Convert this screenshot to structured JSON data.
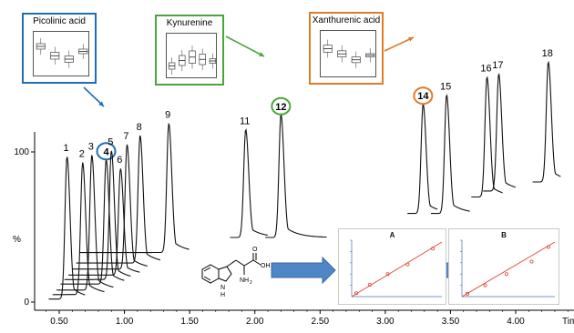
{
  "chart_data": {
    "type": "line",
    "xlabel": "Time",
    "ylabel": "%",
    "x_ticks": [
      0.5,
      1.0,
      1.5,
      2.0,
      2.5,
      3.0,
      3.5,
      4.0
    ],
    "x_tick_labels": [
      "0.50",
      "1.00",
      "1.50",
      "2.00",
      "2.50",
      "3.00",
      "3.50",
      "4.00"
    ],
    "y_ticks": [
      0,
      100
    ],
    "y_tick_labels": [
      "0",
      "100"
    ],
    "xlim": [
      0.35,
      4.45
    ],
    "ylim": [
      0,
      100
    ],
    "series": [
      {
        "label": "1",
        "rt": 0.56,
        "peak": 97,
        "baseline": 2,
        "tail_end": 0.7
      },
      {
        "label": "2",
        "rt": 0.68,
        "peak": 93,
        "baseline": 5,
        "tail_end": 0.85
      },
      {
        "label": "3",
        "rt": 0.75,
        "peak": 98,
        "baseline": 8,
        "tail_end": 0.92
      },
      {
        "label": "4",
        "rt": 0.86,
        "peak": 95,
        "baseline": 12,
        "tail_end": 1.0
      },
      {
        "label": "5",
        "rt": 0.9,
        "peak": 101,
        "baseline": 15,
        "tail_end": 1.05
      },
      {
        "label": "6",
        "rt": 0.97,
        "peak": 89,
        "baseline": 18,
        "tail_end": 1.12
      },
      {
        "label": "7",
        "rt": 1.02,
        "peak": 105,
        "baseline": 22,
        "tail_end": 1.18
      },
      {
        "label": "8",
        "rt": 1.12,
        "peak": 111,
        "baseline": 26,
        "tail_end": 1.28
      },
      {
        "label": "9",
        "rt": 1.34,
        "peak": 119,
        "baseline": 33,
        "tail_end": 1.5
      },
      {
        "label": "11",
        "rt": 1.93,
        "peak": 115,
        "baseline": 43,
        "tail_end": 2.1
      },
      {
        "label": "12",
        "rt": 2.2,
        "peak": 125,
        "baseline": 43,
        "tail_end": 2.55
      },
      {
        "label": "14",
        "rt": 3.29,
        "peak": 132,
        "baseline": 59,
        "tail_end": 3.4
      },
      {
        "label": "15",
        "rt": 3.47,
        "peak": 138,
        "baseline": 59,
        "tail_end": 3.65
      },
      {
        "label": "16",
        "rt": 3.78,
        "peak": 150,
        "baseline": 70,
        "tail_end": 3.9
      },
      {
        "label": "17",
        "rt": 3.87,
        "peak": 152,
        "baseline": 74,
        "tail_end": 4.0
      },
      {
        "label": "18",
        "rt": 4.25,
        "peak": 160,
        "baseline": 80,
        "tail_end": 4.35
      }
    ],
    "insets": [
      {
        "title": "Picolinic acid",
        "points_to": "4",
        "color": "#1f6fb6",
        "boxes": [
          [
            0.62,
            0.74
          ],
          [
            0.4,
            0.55
          ],
          [
            0.33,
            0.47
          ],
          [
            0.52,
            0.62
          ]
        ]
      },
      {
        "title": "Kynurenine",
        "points_to": "12",
        "color": "#4aa63a",
        "boxes": [
          [
            0.22,
            0.36
          ],
          [
            0.3,
            0.52
          ],
          [
            0.35,
            0.62
          ],
          [
            0.32,
            0.55
          ],
          [
            0.35,
            0.45
          ]
        ]
      },
      {
        "title": "Xanthurenic acid",
        "points_to": "14",
        "color": "#e07b2b",
        "boxes": [
          [
            0.55,
            0.7
          ],
          [
            0.45,
            0.58
          ],
          [
            0.33,
            0.45
          ],
          [
            0.45,
            0.52
          ]
        ]
      }
    ],
    "calibration_panels": [
      {
        "title": "A",
        "points": [
          [
            0.05,
            0.06
          ],
          [
            0.2,
            0.21
          ],
          [
            0.4,
            0.4
          ],
          [
            0.62,
            0.57
          ],
          [
            0.9,
            0.85
          ]
        ]
      },
      {
        "title": "B",
        "points": [
          [
            0.06,
            0.05
          ],
          [
            0.25,
            0.2
          ],
          [
            0.48,
            0.4
          ],
          [
            0.75,
            0.62
          ],
          [
            0.93,
            0.88
          ]
        ]
      }
    ],
    "structure": "tryptophan"
  }
}
